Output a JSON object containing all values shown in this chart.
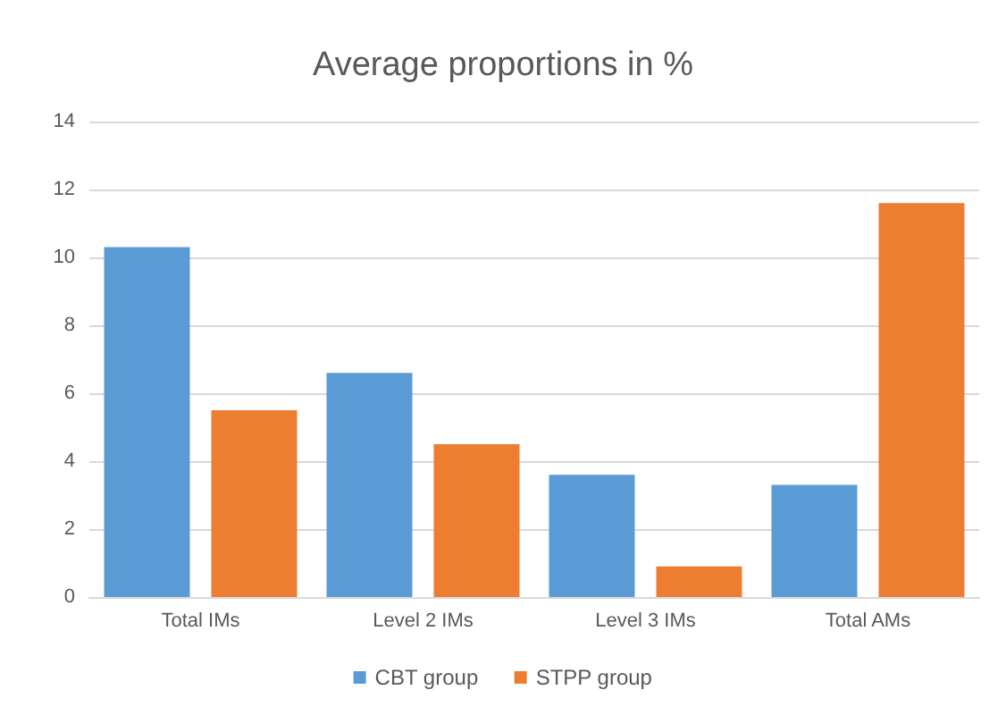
{
  "chart_data": {
    "type": "bar",
    "title": "Average proportions in %",
    "categories": [
      "Total IMs",
      "Level 2 IMs",
      "Level 3 IMs",
      "Total AMs"
    ],
    "series": [
      {
        "name": "CBT group",
        "color": "#5b9bd5",
        "values": [
          10.3,
          6.6,
          3.6,
          3.3
        ]
      },
      {
        "name": "STPP group",
        "color": "#ed7d31",
        "values": [
          5.5,
          4.5,
          0.9,
          11.6
        ]
      }
    ],
    "ylim": [
      0,
      14
    ],
    "yticks": [
      0,
      2,
      4,
      6,
      8,
      10,
      12,
      14
    ],
    "grid": "y",
    "legend": "bottom"
  }
}
